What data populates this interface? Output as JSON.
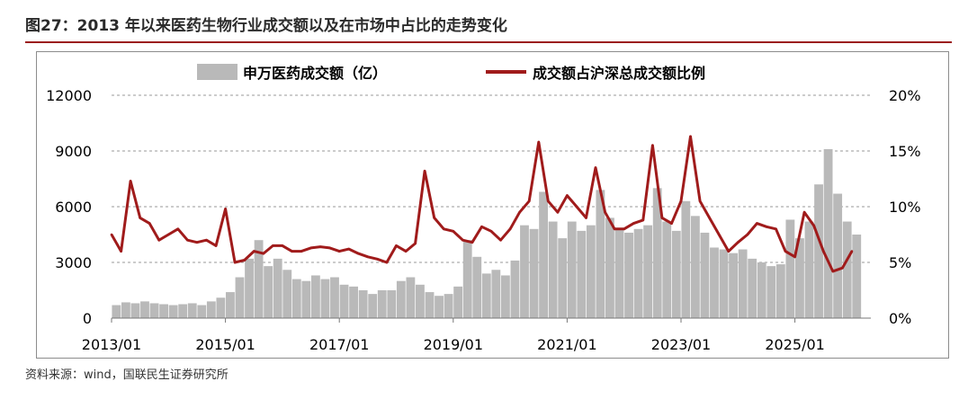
{
  "figure": {
    "title": "图27：2013 年以来医药生物行业成交额以及在市场中占比的走势变化",
    "source": "资料来源：wind，国联民生证券研究所"
  },
  "colors": {
    "bar": "#b9b9b9",
    "line": "#a01b1b",
    "grid": "#9a9a9a",
    "title_rule": "#9b1c1c"
  },
  "chart_data": {
    "type": "bar",
    "legend_position": "top",
    "grid": true,
    "series": [
      {
        "name": "申万医药成交额（亿）",
        "type": "bar",
        "axis": "left",
        "x": [
          "2013-01",
          "2013-03",
          "2013-05",
          "2013-07",
          "2013-09",
          "2013-11",
          "2014-01",
          "2014-03",
          "2014-05",
          "2014-07",
          "2014-09",
          "2014-11",
          "2015-01",
          "2015-03",
          "2015-05",
          "2015-07",
          "2015-09",
          "2015-11",
          "2016-01",
          "2016-03",
          "2016-05",
          "2016-07",
          "2016-09",
          "2016-11",
          "2017-01",
          "2017-03",
          "2017-05",
          "2017-07",
          "2017-09",
          "2017-11",
          "2018-01",
          "2018-03",
          "2018-05",
          "2018-07",
          "2018-09",
          "2018-11",
          "2019-01",
          "2019-03",
          "2019-05",
          "2019-07",
          "2019-09",
          "2019-11",
          "2020-01",
          "2020-03",
          "2020-05",
          "2020-07",
          "2020-09",
          "2020-11",
          "2021-01",
          "2021-03",
          "2021-05",
          "2021-07",
          "2021-09",
          "2021-11",
          "2022-01",
          "2022-03",
          "2022-05",
          "2022-07",
          "2022-09",
          "2022-11",
          "2023-01",
          "2023-03",
          "2023-05",
          "2023-07",
          "2023-09",
          "2023-11",
          "2024-01",
          "2024-03",
          "2024-05",
          "2024-07",
          "2024-09",
          "2024-11",
          "2025-01",
          "2025-03",
          "2025-05",
          "2025-07",
          "2025-09",
          "2025-11",
          "2026-01"
        ],
        "values": [
          700,
          850,
          800,
          900,
          800,
          750,
          700,
          750,
          800,
          700,
          900,
          1100,
          1400,
          2200,
          3200,
          4200,
          2800,
          3200,
          2600,
          2100,
          2000,
          2300,
          2100,
          2200,
          1800,
          1700,
          1500,
          1300,
          1500,
          1500,
          2000,
          2200,
          1800,
          1400,
          1200,
          1300,
          1700,
          4200,
          3300,
          2400,
          2600,
          2300,
          3100,
          5000,
          4800,
          6800,
          5200,
          4300,
          5200,
          4700,
          5000,
          6900,
          5400,
          4800,
          4600,
          4800,
          5000,
          7000,
          5200,
          4700,
          6300,
          5500,
          4600,
          3800,
          3700,
          3500,
          3700,
          3200,
          3000,
          2800,
          2900,
          5300,
          4300,
          5200,
          7200,
          9100,
          6700,
          5200,
          4500
        ]
      },
      {
        "name": "成交额占沪深总成交额比例",
        "type": "line",
        "axis": "right",
        "x": [
          "2013-01",
          "2013-03",
          "2013-05",
          "2013-07",
          "2013-09",
          "2013-11",
          "2014-01",
          "2014-03",
          "2014-05",
          "2014-07",
          "2014-09",
          "2014-11",
          "2015-01",
          "2015-03",
          "2015-05",
          "2015-07",
          "2015-09",
          "2015-11",
          "2016-01",
          "2016-03",
          "2016-05",
          "2016-07",
          "2016-09",
          "2016-11",
          "2017-01",
          "2017-03",
          "2017-05",
          "2017-07",
          "2017-09",
          "2017-11",
          "2018-01",
          "2018-03",
          "2018-05",
          "2018-07",
          "2018-09",
          "2018-11",
          "2019-01",
          "2019-03",
          "2019-05",
          "2019-07",
          "2019-09",
          "2019-11",
          "2020-01",
          "2020-03",
          "2020-05",
          "2020-07",
          "2020-09",
          "2020-11",
          "2021-01",
          "2021-03",
          "2021-05",
          "2021-07",
          "2021-09",
          "2021-11",
          "2022-01",
          "2022-03",
          "2022-05",
          "2022-07",
          "2022-09",
          "2022-11",
          "2023-01",
          "2023-03",
          "2023-05",
          "2023-07",
          "2023-09",
          "2023-11",
          "2024-01",
          "2024-03",
          "2024-05",
          "2024-07",
          "2024-09",
          "2024-11",
          "2025-01",
          "2025-03",
          "2025-05",
          "2025-07",
          "2025-09",
          "2025-11",
          "2026-01"
        ],
        "values": [
          7.5,
          6.0,
          12.3,
          9.0,
          8.5,
          7.0,
          7.5,
          8.0,
          7.0,
          6.8,
          7.0,
          6.5,
          9.8,
          5.0,
          5.2,
          6.0,
          5.8,
          6.5,
          6.5,
          6.0,
          6.0,
          6.3,
          6.4,
          6.3,
          6.0,
          6.2,
          5.8,
          5.5,
          5.3,
          5.0,
          6.5,
          6.0,
          6.7,
          13.2,
          9.0,
          8.0,
          7.8,
          7.0,
          6.8,
          8.2,
          7.8,
          7.0,
          8.0,
          9.5,
          10.5,
          15.8,
          10.5,
          9.5,
          11.0,
          10.0,
          9.0,
          13.5,
          9.5,
          8.0,
          8.0,
          8.5,
          8.8,
          15.5,
          9.0,
          8.5,
          10.5,
          16.3,
          10.5,
          9.0,
          7.5,
          6.0,
          6.8,
          7.5,
          8.5,
          8.2,
          8.0,
          6.0,
          5.5,
          9.5,
          8.3,
          6.0,
          4.2,
          4.5,
          6.0
        ]
      }
    ],
    "left_axis": {
      "min": 0,
      "max": 12000,
      "ticks": [
        "0",
        "3000",
        "6000",
        "9000",
        "12000"
      ]
    },
    "right_axis": {
      "min": 0,
      "max": 20,
      "ticks": [
        "0%",
        "5%",
        "10%",
        "15%",
        "20%"
      ]
    },
    "x_axis": {
      "min": "2013-01",
      "max": "2026-05",
      "tick_labels": [
        "2013/01",
        "2015/01",
        "2017/01",
        "2019/01",
        "2021/01",
        "2023/01",
        "2025/01"
      ],
      "tick_dates": [
        "2013-01",
        "2015-01",
        "2017-01",
        "2019-01",
        "2021-01",
        "2023-01",
        "2025-01"
      ]
    }
  }
}
